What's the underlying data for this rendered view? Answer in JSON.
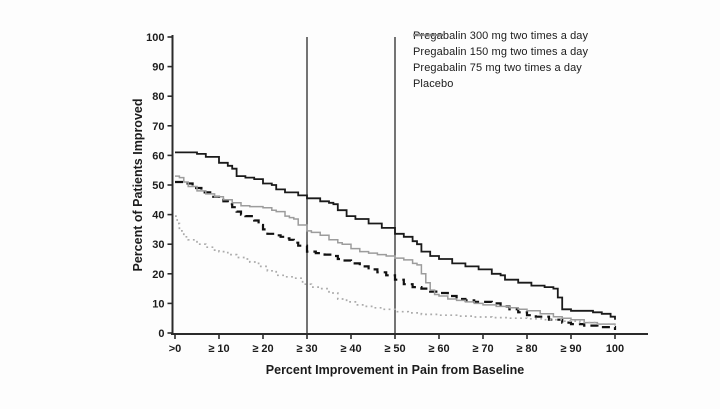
{
  "figure": {
    "background": "#fdfdfd"
  },
  "chart_data": {
    "type": "line",
    "title": "",
    "xlabel": "Percent Improvement in Pain from Baseline",
    "ylabel": "Percent of Patients Improved",
    "xlim": [
      0,
      100
    ],
    "ylim": [
      0,
      100
    ],
    "grid": "off",
    "legend_position": "top-right",
    "x_tick_values": [
      0,
      10,
      20,
      30,
      40,
      50,
      60,
      70,
      80,
      90,
      100
    ],
    "x_tick_labels": [
      ">0",
      "≥ 10",
      "≥ 20",
      "≥ 30",
      "≥ 40",
      "≥ 50",
      "≥ 60",
      "≥ 70",
      "≥ 80",
      "≥ 90",
      "100"
    ],
    "y_tick_values": [
      0,
      10,
      20,
      30,
      40,
      50,
      60,
      70,
      80,
      90,
      100
    ],
    "reference_lines_x": [
      30,
      50
    ],
    "axis_color": "#2b2b2b",
    "series": [
      {
        "name": "Pregabalin 300 mg two times a day",
        "color": "#1a1a1a",
        "dash": "",
        "width": 1.8,
        "x": [
          0,
          3,
          5,
          7,
          10,
          12,
          13,
          14,
          16,
          18,
          20,
          22,
          23,
          25,
          28,
          30,
          33,
          35,
          36,
          37,
          39,
          41,
          44,
          47,
          50,
          52,
          54,
          55,
          56,
          58,
          60,
          63,
          66,
          69,
          72,
          74,
          75,
          78,
          81,
          84,
          86,
          87,
          88,
          90,
          93,
          95,
          97,
          99,
          100
        ],
        "y": [
          61,
          61,
          60.5,
          59.5,
          57.5,
          56.5,
          55.5,
          53,
          52.5,
          52,
          50.5,
          50,
          48.5,
          47.5,
          46.5,
          45.5,
          44.5,
          44,
          43.5,
          41.5,
          39.5,
          38.5,
          37,
          35.5,
          33.5,
          32.5,
          31,
          30,
          27.5,
          26,
          25,
          23.5,
          22.5,
          21.5,
          20,
          19.5,
          18,
          17,
          16,
          15.5,
          15,
          12,
          8,
          7.5,
          7.5,
          7,
          6.5,
          5.5,
          4.5
        ]
      },
      {
        "name": "Pregabalin 150 mg two times a day",
        "color": "#111111",
        "dash": "8 5",
        "width": 2.2,
        "x": [
          0,
          2,
          4,
          6,
          8,
          10,
          11,
          12,
          13,
          14,
          15,
          16,
          18,
          19,
          20,
          21,
          23,
          24,
          25,
          26,
          27,
          28,
          30,
          32,
          34,
          36,
          37,
          38,
          40,
          42,
          44,
          46,
          48,
          50,
          52,
          54,
          56,
          58,
          60,
          62,
          64,
          66,
          68,
          70,
          72,
          74,
          76,
          78,
          80,
          82,
          85,
          88,
          90,
          93,
          96,
          100
        ],
        "y": [
          51,
          50.5,
          49,
          47.5,
          46,
          45,
          44.5,
          43.5,
          42.5,
          41,
          40,
          39.5,
          38,
          36.5,
          35,
          33.5,
          33,
          32.5,
          32,
          31.5,
          30.5,
          29.5,
          27.5,
          27,
          26.5,
          26,
          25,
          24.5,
          23.5,
          22.5,
          21.5,
          20.5,
          19.5,
          18,
          16.5,
          15.5,
          15,
          14,
          13.5,
          12.5,
          11.5,
          11,
          10.5,
          10.5,
          10,
          9,
          8,
          7,
          6,
          5.5,
          4.5,
          3.5,
          3,
          2.5,
          2,
          1
        ]
      },
      {
        "name": "Pregabalin 75 mg two times a day",
        "color": "#9c9c9c",
        "dash": "",
        "width": 1.5,
        "x": [
          0,
          1,
          2,
          3,
          5,
          7,
          9,
          11,
          13,
          15,
          17,
          20,
          22,
          23,
          25,
          26,
          27,
          28,
          30,
          31,
          33,
          35,
          37,
          38,
          40,
          42,
          44,
          46,
          48,
          50,
          52,
          54,
          55,
          56,
          57,
          58,
          59,
          60,
          62,
          64,
          66,
          68,
          70,
          73,
          76,
          78,
          80,
          83,
          86,
          88,
          90,
          93,
          96,
          100
        ],
        "y": [
          53,
          52.5,
          51,
          49.5,
          48,
          47,
          46,
          45,
          44,
          43,
          42.7,
          42.3,
          41.5,
          41,
          39.5,
          39,
          38.5,
          36.5,
          34.5,
          34,
          33,
          31.5,
          30.5,
          30,
          28.5,
          27.5,
          27,
          26.5,
          26,
          25.3,
          24.7,
          23.5,
          23,
          20,
          17,
          14.5,
          13,
          12.5,
          11.5,
          11,
          10.5,
          10,
          9.5,
          9,
          8.5,
          8,
          7.5,
          6.5,
          5.5,
          5,
          4.5,
          3.5,
          3,
          2.5
        ]
      },
      {
        "name": "Placebo",
        "color": "#ababab",
        "dash": "1.8 3.4",
        "width": 1.7,
        "x": [
          0,
          0.5,
          1,
          2,
          3,
          5,
          7,
          9,
          10,
          12,
          14,
          16,
          17,
          19,
          21,
          23,
          25,
          27,
          29,
          31,
          33,
          35,
          37,
          39,
          41,
          43,
          45,
          47,
          50,
          53,
          56,
          60,
          64,
          68,
          72,
          76,
          80,
          84,
          88,
          92,
          96,
          100
        ],
        "y": [
          39.5,
          37,
          34.5,
          32.5,
          31.5,
          30,
          29,
          28,
          27.5,
          26.5,
          25.5,
          25,
          24,
          22.5,
          21,
          19.5,
          19,
          18.5,
          16.5,
          15.5,
          15,
          13.5,
          11.5,
          10.5,
          9.5,
          9,
          8.5,
          8,
          7.2,
          6.8,
          6.3,
          6,
          5.7,
          5.4,
          5.2,
          5,
          4.8,
          4.5,
          4,
          3.5,
          3,
          2.5
        ]
      }
    ]
  },
  "legend": {
    "items": [
      {
        "label": "Pregabalin 300 mg two times a day"
      },
      {
        "label": "Pregabalin 150 mg two times a day"
      },
      {
        "label": "Pregabalin 75 mg two times a day"
      },
      {
        "label": "Placebo"
      }
    ]
  }
}
